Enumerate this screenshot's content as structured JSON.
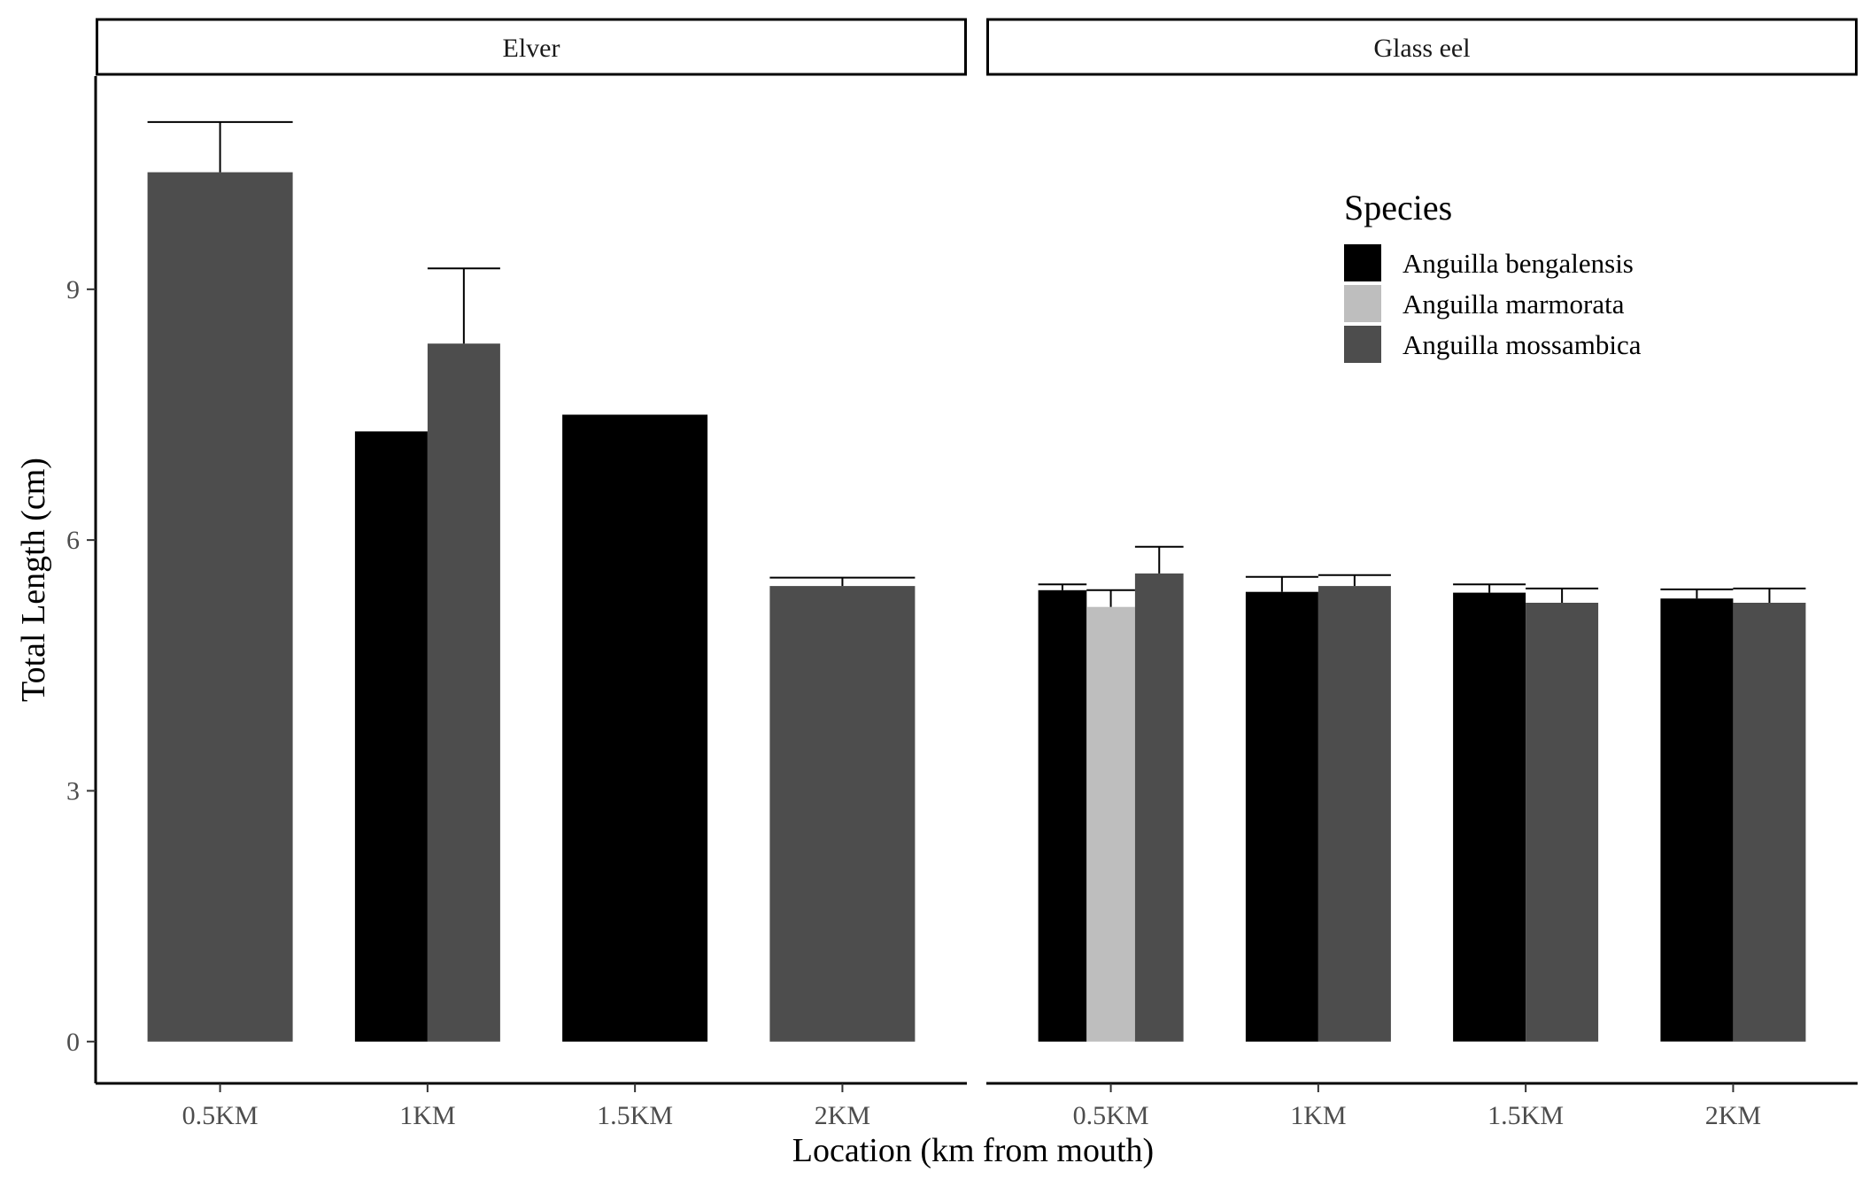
{
  "chart_data": {
    "type": "bar",
    "xlabel": "Location (km from mouth)",
    "ylabel": "Total Length (cm)",
    "ylim": [
      -0.5,
      11.55
    ],
    "yticks": [
      0,
      3,
      6,
      9
    ],
    "categories": [
      "0.5KM",
      "1KM",
      "1.5KM",
      "2KM"
    ],
    "grid": false,
    "legend": {
      "title": "Species",
      "position": "top-right",
      "entries": [
        {
          "name": "Anguilla bengalensis",
          "color": "#000000"
        },
        {
          "name": "Anguilla marmorata",
          "color": "#bebebe"
        },
        {
          "name": "Anguilla mossambica",
          "color": "#4d4d4d"
        }
      ]
    },
    "panels": [
      {
        "strip": "Elver",
        "groups": [
          {
            "category": "0.5KM",
            "bars": [
              {
                "species": "Anguilla mossambica",
                "value": 10.4,
                "error": 0.6
              }
            ]
          },
          {
            "category": "1KM",
            "bars": [
              {
                "species": "Anguilla bengalensis",
                "value": 7.3
              },
              {
                "species": "Anguilla mossambica",
                "value": 8.35,
                "error": 0.9
              }
            ]
          },
          {
            "category": "1.5KM",
            "bars": [
              {
                "species": "Anguilla bengalensis",
                "value": 7.5
              }
            ]
          },
          {
            "category": "2KM",
            "bars": [
              {
                "species": "Anguilla mossambica",
                "value": 5.45,
                "error": 0.1
              }
            ]
          }
        ]
      },
      {
        "strip": "Glass eel",
        "groups": [
          {
            "category": "0.5KM",
            "bars": [
              {
                "species": "Anguilla bengalensis",
                "value": 5.4,
                "error": 0.07
              },
              {
                "species": "Anguilla marmorata",
                "value": 5.2,
                "error": 0.2
              },
              {
                "species": "Anguilla mossambica",
                "value": 5.6,
                "error": 0.32
              }
            ]
          },
          {
            "category": "1KM",
            "bars": [
              {
                "species": "Anguilla bengalensis",
                "value": 5.38,
                "error": 0.18
              },
              {
                "species": "Anguilla mossambica",
                "value": 5.45,
                "error": 0.13
              }
            ]
          },
          {
            "category": "1.5KM",
            "bars": [
              {
                "species": "Anguilla bengalensis",
                "value": 5.37,
                "error": 0.1
              },
              {
                "species": "Anguilla mossambica",
                "value": 5.25,
                "error": 0.17
              }
            ]
          },
          {
            "category": "2KM",
            "bars": [
              {
                "species": "Anguilla bengalensis",
                "value": 5.3,
                "error": 0.11
              },
              {
                "species": "Anguilla mossambica",
                "value": 5.25,
                "error": 0.17
              }
            ]
          }
        ]
      }
    ]
  }
}
